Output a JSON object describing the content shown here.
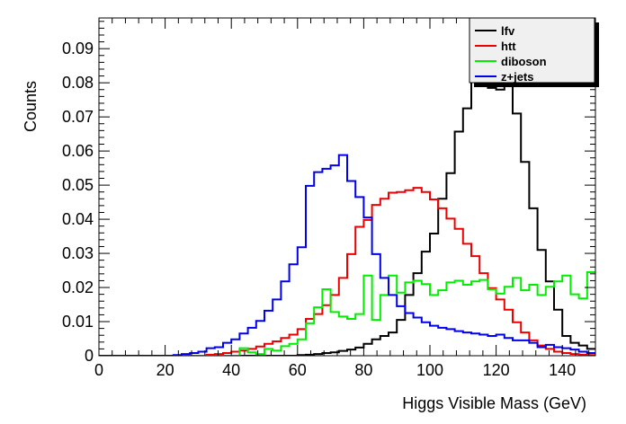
{
  "chart_data": {
    "type": "histogram",
    "xlabel": "Higgs Visible Mass (GeV)",
    "ylabel": "Counts",
    "xlim": [
      0,
      150
    ],
    "ylim": [
      0,
      0.099
    ],
    "bin_width": 2.5,
    "bin_start": 0,
    "grid": false,
    "legend_position": "top-right",
    "x_ticks": [
      "0",
      "20",
      "40",
      "60",
      "80",
      "100",
      "120",
      "140"
    ],
    "y_ticks": [
      "0",
      "0.01",
      "0.02",
      "0.03",
      "0.04",
      "0.05",
      "0.06",
      "0.07",
      "0.08",
      "0.09"
    ],
    "series": [
      {
        "name": "lfv",
        "color": "#000000",
        "values": [
          0,
          0,
          0,
          0,
          0,
          0,
          0,
          0,
          0,
          0,
          0,
          0,
          0,
          0,
          0,
          0,
          0,
          0,
          0,
          0,
          0,
          0,
          0,
          0,
          0.0002,
          0.0003,
          0.0005,
          0.0008,
          0.001,
          0.0014,
          0.0018,
          0.0024,
          0.0035,
          0.0048,
          0.0058,
          0.0068,
          0.0105,
          0.0178,
          0.0242,
          0.0305,
          0.0358,
          0.046,
          0.0535,
          0.0657,
          0.0725,
          0.0835,
          0.0962,
          0.0785,
          0.078,
          0.0882,
          0.071,
          0.0568,
          0.0432,
          0.031,
          0.0218,
          0.0135,
          0.0058,
          0.0038,
          0.003,
          0.002
        ]
      },
      {
        "name": "htt",
        "color": "#ee0000",
        "values": [
          0,
          0,
          0,
          0,
          0,
          0,
          0,
          0,
          0,
          0,
          0,
          0,
          0,
          0.0003,
          0.0005,
          0.0008,
          0.0012,
          0.0015,
          0.002,
          0.0027,
          0.0035,
          0.0042,
          0.0052,
          0.0062,
          0.0078,
          0.0108,
          0.0122,
          0.0148,
          0.0178,
          0.0228,
          0.0298,
          0.0378,
          0.0398,
          0.0442,
          0.046,
          0.0478,
          0.048,
          0.0485,
          0.0492,
          0.048,
          0.0458,
          0.0432,
          0.0402,
          0.0372,
          0.0328,
          0.0292,
          0.0242,
          0.0198,
          0.0165,
          0.0135,
          0.0098,
          0.0068,
          0.0045,
          0.003,
          0.002,
          0.0012,
          0.0008,
          0.0005,
          0.0003,
          0.0002
        ]
      },
      {
        "name": "diboson",
        "color": "#00ee00",
        "values": [
          0,
          0,
          0,
          0,
          0,
          0,
          0,
          0,
          0,
          0,
          0,
          0,
          0,
          0,
          0,
          0,
          0,
          0.0022,
          0.001,
          0.0005,
          0.002,
          0.0015,
          0.0028,
          0.0035,
          0.0048,
          0.0095,
          0.0142,
          0.0195,
          0.0128,
          0.0115,
          0.0108,
          0.0122,
          0.0235,
          0.0105,
          0.0178,
          0.0235,
          0.0185,
          0.0215,
          0.022,
          0.021,
          0.0178,
          0.0192,
          0.0215,
          0.022,
          0.0208,
          0.0218,
          0.0222,
          0.0195,
          0.0182,
          0.0202,
          0.0228,
          0.0192,
          0.0208,
          0.0178,
          0.0202,
          0.0218,
          0.0235,
          0.018,
          0.0168,
          0.0245
        ]
      },
      {
        "name": "z+jets",
        "color": "#0000ee",
        "values": [
          0,
          0,
          0,
          0,
          0,
          0,
          0,
          0,
          0,
          0.0002,
          0.0005,
          0.0008,
          0.0012,
          0.0022,
          0.0025,
          0.0038,
          0.0048,
          0.0065,
          0.0082,
          0.0102,
          0.0132,
          0.0165,
          0.0218,
          0.0268,
          0.0318,
          0.0498,
          0.0538,
          0.0548,
          0.0558,
          0.0588,
          0.0512,
          0.0465,
          0.0405,
          0.0298,
          0.0228,
          0.0178,
          0.0145,
          0.0125,
          0.0112,
          0.0098,
          0.0088,
          0.0082,
          0.0078,
          0.0072,
          0.0068,
          0.0065,
          0.0062,
          0.0058,
          0.0062,
          0.0052,
          0.0045,
          0.0045,
          0.0038,
          0.0025,
          0.0032,
          0.0025,
          0.0022,
          0.0018,
          0.0012,
          0.0008
        ]
      }
    ]
  }
}
